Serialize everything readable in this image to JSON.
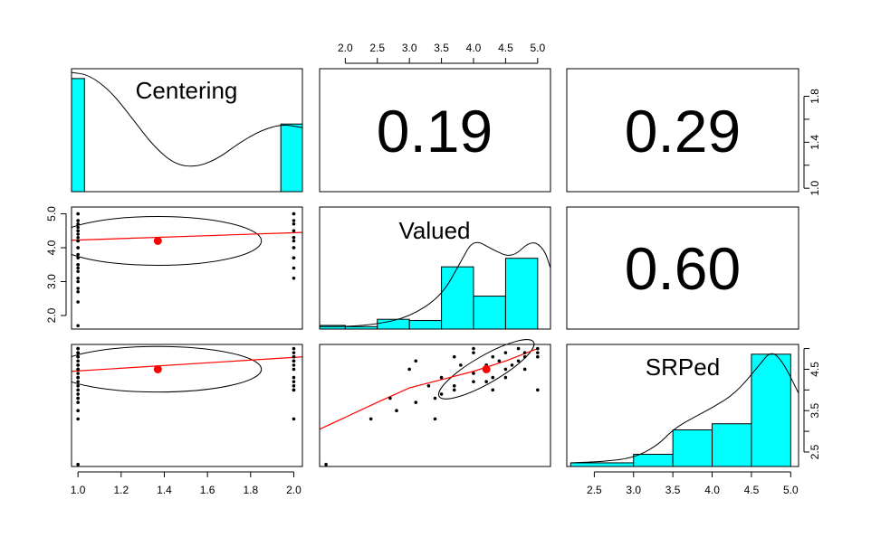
{
  "chart_data": {
    "type": "scatter",
    "variables": [
      "Centering",
      "Valued",
      "SRPed"
    ],
    "correlations": [
      {
        "row": 0,
        "col": 1,
        "label": "0.19"
      },
      {
        "row": 0,
        "col": 2,
        "label": "0.29"
      },
      {
        "row": 1,
        "col": 2,
        "label": "0.60"
      }
    ],
    "axes": {
      "Centering": {
        "range": [
          0.97,
          2.04
        ],
        "ticks": [
          1.0,
          1.2,
          1.4,
          1.6,
          1.8,
          2.0
        ],
        "tick_labels": [
          "1.0",
          "1.2",
          "1.4",
          "1.6",
          "1.8",
          "2.0"
        ]
      },
      "Valued": {
        "range": [
          1.6,
          5.2
        ],
        "ticks": [
          2.0,
          2.5,
          3.0,
          3.5,
          4.0,
          4.5,
          5.0
        ],
        "tick_labels": [
          "2.0",
          "2.5",
          "3.0",
          "3.5",
          "4.0",
          "4.5",
          "5.0"
        ],
        "left_ticks": [
          2.0,
          3.0,
          4.0,
          5.0
        ],
        "left_tick_labels": [
          "2.0",
          "3.0",
          "4.0",
          "5.0"
        ]
      },
      "SRPed": {
        "range": [
          2.15,
          5.1
        ],
        "ticks": [
          2.5,
          3.0,
          3.5,
          4.0,
          4.5,
          5.0
        ],
        "tick_labels": [
          "2.5",
          "3.0",
          "3.5",
          "4.0",
          "4.5",
          "5.0"
        ],
        "right_ticks": [
          2.5,
          3.5,
          4.5
        ],
        "right_tick_labels": [
          "2.5",
          "3.5",
          "4.5"
        ]
      },
      "right_extra": {
        "range": [
          0.97,
          2.04
        ],
        "ticks": [
          1.0,
          1.4,
          1.8
        ],
        "tick_labels": [
          "1.0",
          "1.4",
          "1.8"
        ],
        "minor": [
          1.2,
          1.6
        ]
      }
    },
    "histograms": {
      "Centering": {
        "breaks": [
          0.97,
          1.03,
          1.94,
          2.04
        ],
        "heights": [
          0.92,
          0,
          0.55
        ]
      },
      "Valued": {
        "breaks": [
          1.6,
          2.0,
          2.5,
          3.0,
          3.5,
          4.0,
          4.5,
          5.0
        ],
        "heights": [
          0.03,
          0.02,
          0.08,
          0.07,
          0.51,
          0.27,
          0.58
        ]
      },
      "SRPed": {
        "breaks": [
          2.2,
          3.0,
          3.5,
          4.0,
          4.5,
          5.0
        ],
        "heights": [
          0.03,
          0.1,
          0.3,
          0.35,
          0.92
        ]
      }
    },
    "densities": {
      "Centering": {
        "x": [
          0.97,
          1.05,
          1.15,
          1.25,
          1.35,
          1.45,
          1.55,
          1.65,
          1.75,
          1.85,
          1.95,
          2.04
        ],
        "y": [
          0.97,
          0.95,
          0.82,
          0.6,
          0.37,
          0.22,
          0.2,
          0.27,
          0.4,
          0.5,
          0.55,
          0.52
        ]
      },
      "Valued": {
        "x": [
          1.6,
          2.0,
          2.5,
          3.0,
          3.5,
          3.8,
          4.0,
          4.3,
          4.6,
          4.9,
          5.1,
          5.2
        ],
        "y": [
          0.02,
          0.02,
          0.04,
          0.1,
          0.27,
          0.55,
          0.74,
          0.65,
          0.58,
          0.73,
          0.66,
          0.5
        ]
      },
      "SRPed": {
        "x": [
          2.2,
          2.6,
          3.0,
          3.3,
          3.5,
          3.7,
          4.0,
          4.3,
          4.6,
          4.75,
          4.9,
          5.1
        ],
        "y": [
          0.03,
          0.04,
          0.07,
          0.17,
          0.3,
          0.38,
          0.48,
          0.6,
          0.83,
          0.95,
          0.86,
          0.6
        ]
      }
    },
    "points": [
      {
        "Centering": 1,
        "Valued": 5.0,
        "SRPed": 4.8
      },
      {
        "Centering": 1,
        "Valued": 5.0,
        "SRPed": 4.9
      },
      {
        "Centering": 1,
        "Valued": 4.8,
        "SRPed": 4.9
      },
      {
        "Centering": 1,
        "Valued": 4.6,
        "SRPed": 4.6
      },
      {
        "Centering": 1,
        "Valued": 4.4,
        "SRPed": 4.7
      },
      {
        "Centering": 1,
        "Valued": 4.2,
        "SRPed": 4.6
      },
      {
        "Centering": 1,
        "Valued": 4.0,
        "SRPed": 4.4
      },
      {
        "Centering": 1,
        "Valued": 3.7,
        "SRPed": 4.0
      },
      {
        "Centering": 1,
        "Valued": 3.4,
        "SRPed": 3.8
      },
      {
        "Centering": 1,
        "Valued": 3.1,
        "SRPed": 3.7
      },
      {
        "Centering": 1,
        "Valued": 2.8,
        "SRPed": 3.5
      },
      {
        "Centering": 1,
        "Valued": 2.4,
        "SRPed": 3.3
      },
      {
        "Centering": 1,
        "Valued": 1.7,
        "SRPed": 2.2
      },
      {
        "Centering": 2,
        "Valued": 5.0,
        "SRPed": 5.0
      },
      {
        "Centering": 2,
        "Valued": 4.8,
        "SRPed": 4.8
      },
      {
        "Centering": 2,
        "Valued": 4.5,
        "SRPed": 4.5
      },
      {
        "Centering": 2,
        "Valued": 4.3,
        "SRPed": 4.3
      },
      {
        "Centering": 2,
        "Valued": 4.0,
        "SRPed": 4.2
      },
      {
        "Centering": 2,
        "Valued": 3.7,
        "SRPed": 4.1
      },
      {
        "Centering": 2,
        "Valued": 3.4,
        "SRPed": 3.3
      },
      {
        "Centering": 2,
        "Valued": 3.1,
        "SRPed": 4.7
      },
      {
        "Centering": 1,
        "Valued": 3.0,
        "SRPed": 4.5
      },
      {
        "Centering": 1,
        "Valued": 3.3,
        "SRPed": 4.1
      },
      {
        "Centering": 1,
        "Valued": 3.5,
        "SRPed": 4.3
      },
      {
        "Centering": 1,
        "Valued": 3.5,
        "SRPed": 3.9
      },
      {
        "Centering": 2,
        "Valued": 3.7,
        "SRPed": 4.8
      },
      {
        "Centering": 2,
        "Valued": 4.0,
        "SRPed": 4.9
      },
      {
        "Centering": 1,
        "Valued": 3.8,
        "SRPed": 4.6
      },
      {
        "Centering": 1,
        "Valued": 4.3,
        "SRPed": 4.8
      },
      {
        "Centering": 1,
        "Valued": 4.5,
        "SRPed": 4.3
      },
      {
        "Centering": 2,
        "Valued": 4.3,
        "SRPed": 4.0
      },
      {
        "Centering": 2,
        "Valued": 4.7,
        "SRPed": 4.7
      },
      {
        "Centering": 1,
        "Valued": 4.7,
        "SRPed": 5.0
      },
      {
        "Centering": 1,
        "Valued": 4.0,
        "SRPed": 5.0
      },
      {
        "Centering": 1,
        "Valued": 4.5,
        "SRPed": 4.9
      },
      {
        "Centering": 2,
        "Valued": 4.2,
        "SRPed": 4.6
      },
      {
        "Centering": 1,
        "Valued": 4.8,
        "SRPed": 4.5
      },
      {
        "Centering": 1,
        "Valued": 2.7,
        "SRPed": 3.8
      },
      {
        "Centering": 2,
        "Valued": 5.0,
        "SRPed": 4.0
      },
      {
        "Centering": 1,
        "Valued": 4.2,
        "SRPed": 4.2
      }
    ],
    "means": {
      "Centering": 1.37,
      "Valued": 4.2,
      "SRPed": 4.5
    },
    "fits": {
      "Valued_vs_Centering": {
        "x": [
          0.97,
          2.04
        ],
        "y": [
          4.22,
          4.45
        ]
      },
      "SRPed_vs_Centering": {
        "x": [
          0.97,
          2.04
        ],
        "y": [
          4.45,
          4.8
        ]
      },
      "SRPed_vs_Valued": {
        "x": [
          1.6,
          2.5,
          3.0,
          3.5,
          4.0,
          4.5,
          5.0
        ],
        "y": [
          3.05,
          3.7,
          4.05,
          4.25,
          4.45,
          4.7,
          5.0
        ]
      }
    },
    "ellipses": {
      "Valued_vs_Centering": {
        "center": [
          1.37,
          4.2
        ],
        "rx": 0.48,
        "ry": 0.72,
        "angle_deg": 0
      },
      "SRPed_vs_Centering": {
        "center": [
          1.37,
          4.5
        ],
        "rx": 0.48,
        "ry": 0.55,
        "angle_deg": 0
      },
      "SRPed_vs_Valued": {
        "center": [
          4.2,
          4.5
        ],
        "rx": 0.85,
        "ry": 0.33,
        "angle_deg": -30
      }
    }
  }
}
